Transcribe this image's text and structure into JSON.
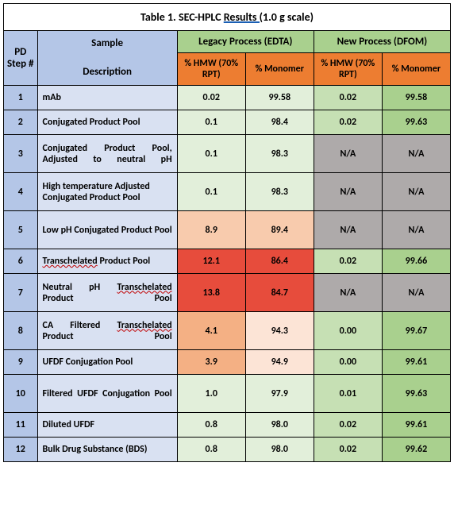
{
  "title_prefix": "Table 1.  SEC-HPLC ",
  "title_underlined": "Results  (",
  "title_suffix": "1.0 g scale)",
  "columns": {
    "step": "PD Step #",
    "sample_top": "Sample",
    "sample_bot": "Description",
    "legacy": "Legacy Process (EDTA)",
    "new": "New Process (DFOM)",
    "hmw": "% HMW (70% RPT)",
    "monomer": "% Monomer"
  },
  "colors": {
    "green_light": "#e2efda",
    "green_med": "#c6e0b4",
    "green_dark": "#a9d08e",
    "orange_light": "#fce4d6",
    "orange_med": "#f8cbad",
    "orange_dark": "#f4b084",
    "red": "#e74c3c",
    "gray": "#aeaaaa"
  },
  "rows": [
    {
      "step": "1",
      "sample": "mAb",
      "v": [
        "0.02",
        "99.58",
        "0.02",
        "99.58"
      ],
      "c": [
        "green_light",
        "green_light",
        "green_med",
        "green_dark"
      ],
      "tall": false
    },
    {
      "step": "2",
      "sample": "Conjugated Product Pool",
      "v": [
        "0.1",
        "98.4",
        "0.02",
        "99.63"
      ],
      "c": [
        "green_light",
        "green_light",
        "green_med",
        "green_dark"
      ],
      "tall": false
    },
    {
      "step": "3",
      "sample": "Conjugated Product Pool, Adjusted to neutral pH",
      "v": [
        "0.1",
        "98.3",
        "N/A",
        "N/A"
      ],
      "c": [
        "green_light",
        "green_light",
        "gray",
        "gray"
      ],
      "tall": true,
      "justify": true
    },
    {
      "step": "4",
      "sample": "High temperature Adjusted Conjugated Product Pool",
      "v": [
        "0.1",
        "98.3",
        "N/A",
        "N/A"
      ],
      "c": [
        "green_light",
        "green_light",
        "gray",
        "gray"
      ],
      "tall": true
    },
    {
      "step": "5",
      "sample": "Low pH Conjugated Product Pool",
      "v": [
        "8.9",
        "89.4",
        "N/A",
        "N/A"
      ],
      "c": [
        "orange_med",
        "orange_med",
        "gray",
        "gray"
      ],
      "tall": true,
      "justify": true
    },
    {
      "step": "6",
      "sample": "<span class='spell'>Transchelated</span> Product Pool",
      "v": [
        "12.1",
        "86.4",
        "0.02",
        "99.66"
      ],
      "c": [
        "red",
        "red",
        "green_med",
        "green_dark"
      ],
      "tall": false
    },
    {
      "step": "7",
      "sample": "Neutral pH <span class='spell'>Transchelated</span> Product Pool",
      "v": [
        "13.8",
        "84.7",
        "N/A",
        "N/A"
      ],
      "c": [
        "red",
        "red",
        "gray",
        "gray"
      ],
      "tall": true,
      "justify": true
    },
    {
      "step": "8",
      "sample": "CA Filtered <span class='spell'>Transchelated</span> Product Pool",
      "v": [
        "4.1",
        "94.3",
        "0.00",
        "99.67"
      ],
      "c": [
        "orange_dark",
        "orange_light",
        "green_med",
        "green_dark"
      ],
      "tall": true,
      "justify": true
    },
    {
      "step": "9",
      "sample": "UFDF Conjugation Pool",
      "v": [
        "3.9",
        "94.9",
        "0.00",
        "99.61"
      ],
      "c": [
        "orange_dark",
        "orange_light",
        "green_med",
        "green_dark"
      ],
      "tall": false
    },
    {
      "step": "10",
      "sample": "Filtered UFDF Conjugation Pool",
      "v": [
        "1.0",
        "97.9",
        "0.01",
        "99.63"
      ],
      "c": [
        "green_light",
        "green_light",
        "green_med",
        "green_dark"
      ],
      "tall": true,
      "justify": true
    },
    {
      "step": "11",
      "sample": "Diluted UFDF",
      "v": [
        "0.8",
        "98.0",
        "0.02",
        "99.61"
      ],
      "c": [
        "green_light",
        "green_light",
        "green_med",
        "green_dark"
      ],
      "tall": false
    },
    {
      "step": "12",
      "sample": "Bulk Drug Substance (BDS)",
      "v": [
        "0.8",
        "98.0",
        "0.02",
        "99.62"
      ],
      "c": [
        "green_light",
        "green_light",
        "green_med",
        "green_dark"
      ],
      "tall": false
    }
  ]
}
